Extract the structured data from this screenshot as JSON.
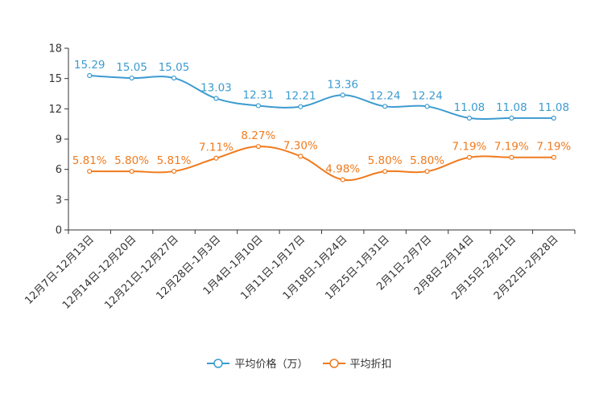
{
  "chart_data": {
    "type": "line",
    "categories": [
      "12月7日-12月13日",
      "12月14日-12月20日",
      "12月21日-12月27日",
      "12月28日-1月3日",
      "1月4日-1月10日",
      "1月11日-1月17日",
      "1月18日-1月24日",
      "1月25日-1月31日",
      "2月1日-2月7日",
      "2月8日-2月14日",
      "2月15日-2月21日",
      "2月22日-2月28日"
    ],
    "series": [
      {
        "name": "平均价格（万）",
        "color": "#3c9bd0",
        "values": [
          15.29,
          15.05,
          15.05,
          13.03,
          12.31,
          12.21,
          13.36,
          12.24,
          12.24,
          11.08,
          11.08,
          11.08
        ],
        "labels": [
          "15.29",
          "15.05",
          "15.05",
          "13.03",
          "12.31",
          "12.21",
          "13.36",
          "12.24",
          "12.24",
          "11.08",
          "11.08",
          "11.08"
        ]
      },
      {
        "name": "平均折扣",
        "color": "#f07a1d",
        "values": [
          5.81,
          5.8,
          5.81,
          7.11,
          8.27,
          7.3,
          4.98,
          5.8,
          5.8,
          7.19,
          7.19,
          7.19
        ],
        "labels": [
          "5.81%",
          "5.80%",
          "5.81%",
          "7.11%",
          "8.27%",
          "7.30%",
          "4.98%",
          "5.80%",
          "5.80%",
          "7.19%",
          "7.19%",
          "7.19%"
        ]
      }
    ],
    "yticks": [
      "0",
      "3",
      "6",
      "9",
      "12",
      "15",
      "18"
    ],
    "ylim": [
      0,
      18
    ],
    "title": "",
    "xlabel": "",
    "ylabel": "",
    "legend": "bottom-center"
  }
}
